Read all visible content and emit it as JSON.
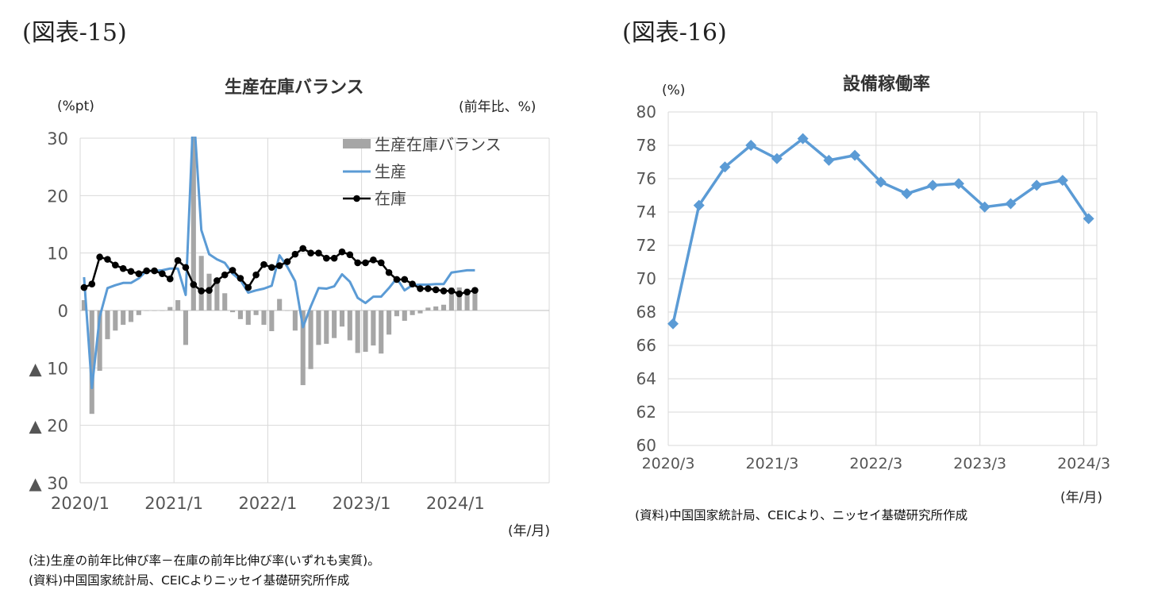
{
  "left": {
    "figure_label": "(図表-15)",
    "unit_left": "(%pt)",
    "unit_right": "(前年比、%)",
    "x_unit": "(年/月)",
    "notes": [
      "(注)生産の前年比伸び率－在庫の前年比伸び率(いずれも実質)。",
      "(資料)中国国家統計局、CEICよりニッセイ基礎研究所作成"
    ]
  },
  "right": {
    "figure_label": "(図表-16)",
    "unit": "(%)",
    "x_unit": "(年/月)",
    "note": "(資料)中国国家統計局、CEICより、ニッセイ基礎研究所作成"
  },
  "colors": {
    "bar": "#a6a6a6",
    "production": "#5b9bd5",
    "inventory": "#000000",
    "utilization": "#5b9bd5",
    "grid": "#d9d9d9"
  },
  "chart_data": [
    {
      "type": "bar+line",
      "title": "生産在庫バランス",
      "ylim": [
        -30,
        30
      ],
      "y_ticks": [
        {
          "value": 30,
          "label": "30"
        },
        {
          "value": 20,
          "label": "20"
        },
        {
          "value": 10,
          "label": "10"
        },
        {
          "value": 0,
          "label": "0"
        },
        {
          "value": -10,
          "label": "▲ 10"
        },
        {
          "value": -20,
          "label": "▲ 20"
        },
        {
          "value": -30,
          "label": "▲ 30"
        }
      ],
      "x_tick_labels": [
        "2020/1",
        "2021/1",
        "2022/1",
        "2023/1",
        "2024/1"
      ],
      "x_range": [
        "2020/1",
        "2024/12"
      ],
      "grid": true,
      "legend_position": "top-right",
      "x": [
        "2020/1",
        "2020/2",
        "2020/3",
        "2020/4",
        "2020/5",
        "2020/6",
        "2020/7",
        "2020/8",
        "2020/9",
        "2020/10",
        "2020/11",
        "2020/12",
        "2021/1",
        "2021/2",
        "2021/3",
        "2021/4",
        "2021/5",
        "2021/6",
        "2021/7",
        "2021/8",
        "2021/9",
        "2021/10",
        "2021/11",
        "2021/12",
        "2022/1",
        "2022/2",
        "2022/3",
        "2022/4",
        "2022/5",
        "2022/6",
        "2022/7",
        "2022/8",
        "2022/9",
        "2022/10",
        "2022/11",
        "2022/12",
        "2023/1",
        "2023/2",
        "2023/3",
        "2023/4",
        "2023/5",
        "2023/6",
        "2023/7",
        "2023/8",
        "2023/9",
        "2023/10",
        "2023/11",
        "2023/12",
        "2024/1",
        "2024/2",
        "2024/3"
      ],
      "series": [
        {
          "name": "生産在庫バランス",
          "kind": "bar",
          "values": [
            1.8,
            -18,
            -10.5,
            -5,
            -3.5,
            -2.5,
            -2,
            -0.8,
            0,
            0,
            0,
            0.6,
            1.8,
            -6,
            31,
            9.5,
            6.4,
            5.3,
            3,
            -0.3,
            -1.5,
            -2.5,
            -0.8,
            -2.5,
            -3.6,
            2,
            0,
            -3.5,
            -13,
            -10.2,
            -6,
            -5.8,
            -4.8,
            -2.8,
            -5.2,
            -7.4,
            -7.2,
            -6.1,
            -7.5,
            -4.2,
            -1,
            -1.8,
            -0.8,
            -0.5,
            0.5,
            0.7,
            1,
            4,
            4,
            3.8,
            3.8
          ]
        },
        {
          "name": "生産",
          "kind": "line",
          "values": [
            5.8,
            -13.5,
            -1.1,
            3.9,
            4.4,
            4.8,
            4.8,
            5.6,
            6.9,
            6.9,
            7.0,
            7.3,
            7.3,
            2.7,
            35,
            14,
            9.8,
            8.9,
            8.3,
            6.4,
            5.3,
            3.1,
            3.5,
            3.8,
            4.3,
            9.6,
            7.6,
            5.1,
            -2.9,
            0.7,
            3.9,
            3.8,
            4.2,
            6.3,
            5.0,
            2.2,
            1.3,
            2.4,
            2.4,
            3.9,
            5.6,
            3.5,
            4.4,
            4.5,
            4.5,
            4.6,
            4.6,
            6.6,
            6.8,
            7.0,
            7.0
          ]
        },
        {
          "name": "在庫",
          "kind": "line",
          "values": [
            4.0,
            4.6,
            9.3,
            8.9,
            7.9,
            7.3,
            6.8,
            6.4,
            6.9,
            6.9,
            6.4,
            5.5,
            8.7,
            7.5,
            4.5,
            3.4,
            3.5,
            5.2,
            6.2,
            7.0,
            5.6,
            4.0,
            6.2,
            8.0,
            7.5,
            7.8,
            8.5,
            9.8,
            10.8,
            10.0,
            10.0,
            9.1,
            9.1,
            10.2,
            9.7,
            8.3,
            8.3,
            8.8,
            8.3,
            6.6,
            5.4,
            5.4,
            4.6,
            3.8,
            3.8,
            3.6,
            3.4,
            3.4,
            2.9,
            3.2,
            3.5
          ]
        }
      ]
    },
    {
      "type": "line",
      "title": "設備稼働率",
      "ylim": [
        60,
        80
      ],
      "y_ticks": [
        60,
        62,
        64,
        66,
        68,
        70,
        72,
        74,
        76,
        78,
        80
      ],
      "x_tick_labels": [
        "2020/3",
        "2021/3",
        "2022/3",
        "2023/3",
        "2024/3"
      ],
      "grid": true,
      "x": [
        "2020/3",
        "2020/6",
        "2020/9",
        "2020/12",
        "2021/3",
        "2021/6",
        "2021/9",
        "2021/12",
        "2022/3",
        "2022/6",
        "2022/9",
        "2022/12",
        "2023/3",
        "2023/6",
        "2023/9",
        "2023/12",
        "2024/3"
      ],
      "series": [
        {
          "name": "設備稼働率",
          "values": [
            67.3,
            74.4,
            76.7,
            78.0,
            77.2,
            78.4,
            77.1,
            77.4,
            75.8,
            75.1,
            75.6,
            75.7,
            74.3,
            74.5,
            75.6,
            75.9,
            73.6
          ]
        }
      ]
    }
  ]
}
